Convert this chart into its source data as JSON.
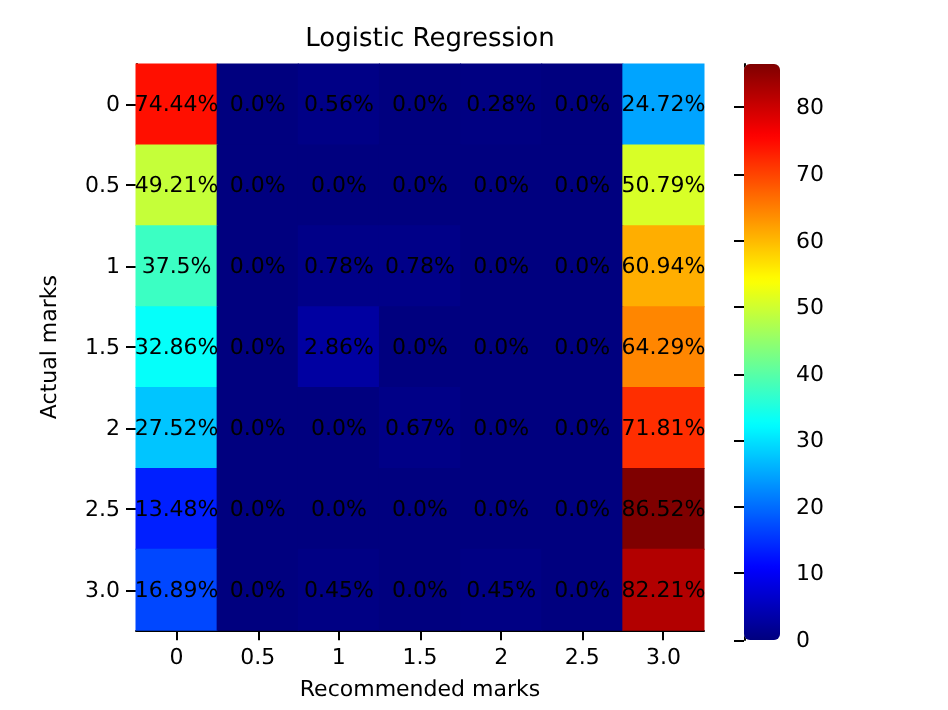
{
  "chart_data": {
    "type": "heatmap",
    "title": "Logistic Regression",
    "xlabel": "Recommended marks",
    "ylabel": "Actual marks",
    "categories": [
      "0",
      "0.5",
      "1",
      "1.5",
      "2",
      "2.5",
      "3.0"
    ],
    "y_categories": [
      "0",
      "0.5",
      "1",
      "1.5",
      "2",
      "2.5",
      "3.0"
    ],
    "cells": [
      [
        74.44,
        0.0,
        0.56,
        0.0,
        0.28,
        0.0,
        24.72
      ],
      [
        49.21,
        0.0,
        0.0,
        0.0,
        0.0,
        0.0,
        50.79
      ],
      [
        37.5,
        0.0,
        0.78,
        0.78,
        0.0,
        0.0,
        60.94
      ],
      [
        32.86,
        0.0,
        2.86,
        0.0,
        0.0,
        0.0,
        64.29
      ],
      [
        27.52,
        0.0,
        0.0,
        0.67,
        0.0,
        0.0,
        71.81
      ],
      [
        13.48,
        0.0,
        0.0,
        0.0,
        0.0,
        0.0,
        86.52
      ],
      [
        16.89,
        0.0,
        0.45,
        0.0,
        0.45,
        0.0,
        82.21
      ]
    ],
    "cell_labels": [
      [
        "74.44%",
        "0.0%",
        "0.56%",
        "0.0%",
        "0.28%",
        "0.0%",
        "24.72%"
      ],
      [
        "49.21%",
        "0.0%",
        "0.0%",
        "0.0%",
        "0.0%",
        "0.0%",
        "50.79%"
      ],
      [
        "37.5%",
        "0.0%",
        "0.78%",
        "0.78%",
        "0.0%",
        "0.0%",
        "60.94%"
      ],
      [
        "32.86%",
        "0.0%",
        "2.86%",
        "0.0%",
        "0.0%",
        "0.0%",
        "64.29%"
      ],
      [
        "27.52%",
        "0.0%",
        "0.0%",
        "0.67%",
        "0.0%",
        "0.0%",
        "71.81%"
      ],
      [
        "13.48%",
        "0.0%",
        "0.0%",
        "0.0%",
        "0.0%",
        "0.0%",
        "86.52%"
      ],
      [
        "16.89%",
        "0.0%",
        "0.45%",
        "0.0%",
        "0.45%",
        "0.0%",
        "82.21%"
      ]
    ],
    "clim": [
      0,
      86.52
    ],
    "cticks": [
      0,
      10,
      20,
      30,
      40,
      50,
      60,
      70,
      80
    ]
  }
}
